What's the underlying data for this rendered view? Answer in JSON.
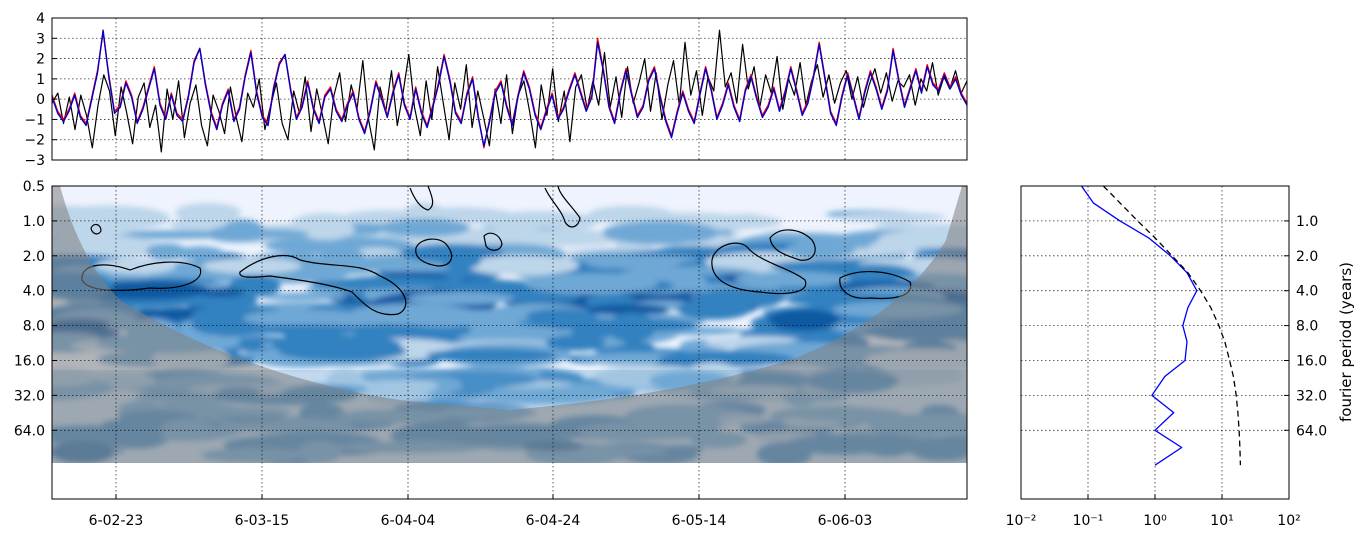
{
  "chart_data": [
    {
      "type": "line",
      "panel": "time-series",
      "ylim": [
        -3,
        4
      ],
      "y_ticks": [
        -3,
        -2,
        -1,
        0,
        1,
        2,
        3,
        4
      ],
      "y_tick_labels": [
        "−3",
        "−2",
        "−1",
        "0",
        "1",
        "2",
        "3",
        "4"
      ],
      "x_tick_labels": [
        "6-02-23",
        "6-03-15",
        "6-04-04",
        "6-04-24",
        "6-05-14",
        "6-06-03"
      ],
      "grid": true,
      "colors": {
        "red": "#ff0000",
        "blue": "#0000cc",
        "black": "#000000"
      },
      "series": [
        {
          "color": "#ff0000",
          "values": [
            0.2,
            -0.6,
            -1.0,
            -0.5,
            0.3,
            -0.8,
            -1.2,
            0.1,
            1.4,
            3.3,
            1.2,
            -0.6,
            -0.3,
            0.9,
            0.2,
            -1.1,
            -0.4,
            0.6,
            1.6,
            -0.2,
            -0.9,
            0.3,
            -0.7,
            -1.0,
            0.2,
            1.9,
            2.5,
            0.8,
            -0.6,
            -1.4,
            -0.2,
            0.5,
            -1.0,
            -0.4,
            1.2,
            2.4,
            0.4,
            -0.8,
            -1.2,
            0.6,
            1.8,
            2.2,
            0.5,
            -0.9,
            -0.3,
            0.9,
            -0.4,
            -1.1,
            0.2,
            0.6,
            -0.5,
            -1.0,
            -0.2,
            0.4,
            -0.9,
            -1.6,
            -0.5,
            0.9,
            0.1,
            -0.8,
            0.4,
            1.3,
            -0.2,
            -0.9,
            0.6,
            -0.6,
            -1.3,
            -0.3,
            0.8,
            2.2,
            1.0,
            -0.6,
            -1.1,
            0.3,
            1.1,
            -0.8,
            -2.4,
            -1.0,
            0.4,
            0.9,
            -0.3,
            -1.2,
            0.2,
            1.4,
            0.6,
            -0.7,
            -1.4,
            -0.5,
            0.3,
            -0.9,
            -0.4,
            0.5,
            1.3,
            0.4,
            -0.5,
            0.2,
            3.0,
            1.5,
            -0.3,
            -1.1,
            0.4,
            1.5,
            0.3,
            -0.8,
            -0.3,
            1.0,
            1.6,
            0.2,
            -1.0,
            -1.8,
            -0.6,
            0.4,
            -0.5,
            -1.1,
            0.3,
            1.6,
            0.5,
            -0.9,
            -0.2,
            0.8,
            -0.3,
            -1.0,
            0.5,
            1.2,
            0.1,
            -0.8,
            -0.3,
            0.6,
            -0.5,
            0.4,
            1.6,
            0.5,
            -0.7,
            -0.1,
            1.2,
            2.8,
            1.1,
            -0.6,
            -1.2,
            0.2,
            1.3,
            0.2,
            -0.9,
            0.4,
            1.4,
            0.6,
            -0.4,
            0.5,
            2.5,
            1.0,
            -0.3,
            0.6,
            1.5,
            0.4,
            1.7,
            0.8,
            0.5,
            1.3,
            0.6,
            1.1,
            0.3,
            -0.2
          ]
        },
        {
          "color": "#0000cc",
          "values": [
            0.1,
            -0.7,
            -1.1,
            -0.6,
            0.2,
            -0.9,
            -1.3,
            0.0,
            1.3,
            3.4,
            1.1,
            -0.7,
            -0.4,
            0.8,
            0.1,
            -1.2,
            -0.5,
            0.5,
            1.5,
            -0.3,
            -1.0,
            0.2,
            -0.8,
            -1.1,
            0.1,
            1.8,
            2.5,
            0.7,
            -0.7,
            -1.5,
            -0.3,
            0.4,
            -1.1,
            -0.5,
            1.1,
            2.3,
            0.3,
            -0.9,
            -1.3,
            0.5,
            1.7,
            2.2,
            0.4,
            -1.0,
            -0.4,
            0.8,
            -0.5,
            -1.2,
            0.1,
            0.5,
            -0.6,
            -1.1,
            -0.3,
            0.3,
            -1.0,
            -1.7,
            -0.6,
            0.8,
            0.0,
            -0.9,
            0.3,
            1.2,
            -0.3,
            -1.0,
            0.5,
            -0.7,
            -1.4,
            -0.4,
            0.7,
            2.1,
            0.9,
            -0.7,
            -1.2,
            0.2,
            1.0,
            -0.9,
            -2.3,
            -1.1,
            0.3,
            0.8,
            -0.4,
            -1.3,
            0.1,
            1.3,
            0.5,
            -0.8,
            -1.5,
            -0.6,
            0.2,
            -1.0,
            -0.5,
            0.4,
            1.2,
            0.3,
            -0.6,
            0.1,
            2.8,
            1.4,
            -0.4,
            -1.2,
            0.3,
            1.4,
            0.2,
            -0.9,
            -0.4,
            0.9,
            1.5,
            0.1,
            -1.1,
            -1.9,
            -0.7,
            0.3,
            -0.6,
            -1.2,
            0.2,
            1.5,
            0.4,
            -1.0,
            -0.3,
            0.7,
            -0.4,
            -1.1,
            0.4,
            1.1,
            0.0,
            -0.9,
            -0.4,
            0.5,
            -0.6,
            0.3,
            1.5,
            0.4,
            -0.8,
            -0.2,
            1.1,
            2.7,
            1.0,
            -0.7,
            -1.3,
            0.1,
            1.2,
            0.1,
            -1.0,
            0.3,
            1.3,
            0.5,
            -0.5,
            0.4,
            2.4,
            0.9,
            -0.4,
            0.5,
            1.4,
            0.3,
            1.6,
            0.7,
            0.4,
            1.2,
            0.5,
            1.0,
            0.2,
            -0.3
          ]
        },
        {
          "color": "#000000",
          "values": [
            -0.2,
            0.3,
            -1.2,
            0.1,
            -1.5,
            0.2,
            -0.8,
            -2.4,
            -0.3,
            1.2,
            0.4,
            -1.8,
            0.6,
            -0.7,
            -2.2,
            0.1,
            0.8,
            -1.4,
            -0.3,
            -2.6,
            0.5,
            -1.0,
            0.9,
            -1.9,
            -0.2,
            0.7,
            -1.3,
            -2.3,
            0.2,
            -0.6,
            -1.7,
            0.6,
            -0.9,
            -2.1,
            0.3,
            -0.4,
            1.0,
            -1.5,
            -0.3,
            0.8,
            -1.2,
            -2.0,
            0.4,
            -0.7,
            1.1,
            -1.6,
            0.5,
            -0.8,
            -2.2,
            0.2,
            1.3,
            -1.1,
            0.7,
            -0.5,
            1.9,
            -1.0,
            -2.5,
            0.6,
            -0.6,
            1.4,
            -1.3,
            0.3,
            2.2,
            -0.4,
            -1.8,
            0.9,
            -1.0,
            1.6,
            -0.2,
            -2.0,
            0.8,
            -0.5,
            1.7,
            -1.4,
            0.4,
            -0.9,
            -2.3,
            0.5,
            -1.2,
            1.2,
            -1.7,
            0.2,
            0.9,
            -0.6,
            -2.4,
            0.7,
            -0.8,
            1.5,
            -1.1,
            0.4,
            -2.1,
            0.6,
            1.2,
            -0.5,
            0.9,
            -0.3,
            2.3,
            -0.4,
            1.1,
            -0.9,
            1.6,
            -0.2,
            0.8,
            2.0,
            -0.6,
            1.3,
            -1.0,
            0.7,
            1.9,
            -0.3,
            2.8,
            0.2,
            1.4,
            -0.8,
            1.1,
            0.4,
            3.4,
            0.6,
            1.3,
            -0.2,
            2.7,
            0.5,
            1.6,
            -0.4,
            1.2,
            0.3,
            2.1,
            -0.5,
            1.0,
            0.2,
            1.8,
            -0.3,
            0.9,
            1.7,
            0.1,
            1.2,
            -0.2,
            0.8,
            1.4,
            0.0,
            1.1,
            -0.4,
            0.7,
            1.5,
            0.3,
            1.3,
            -0.1,
            0.9,
            0.6,
            1.2,
            -0.3,
            1.0,
            0.4,
            1.8,
            0.2,
            1.1,
            0.5,
            1.4,
            0.3,
            0.9
          ]
        }
      ]
    },
    {
      "type": "heatmap",
      "panel": "wavelet-power-spectrum",
      "y_scale": "log2 (inverted)",
      "y_tick_labels": [
        "0.5",
        "1.0",
        "2.0",
        "4.0",
        "8.0",
        "16.0",
        "32.0",
        "64.0"
      ],
      "x_tick_labels": [
        "6-02-23",
        "6-03-15",
        "6-04-04",
        "6-04-24",
        "6-05-14",
        "6-06-03"
      ],
      "grid": true,
      "colormap": [
        "#eef3fd",
        "#bdd6ea",
        "#6fa8d5",
        "#3381c0",
        "#0e5aa3"
      ],
      "cone_of_influence_color": "#7f7f7f"
    },
    {
      "type": "line",
      "panel": "global-wavelet-spectrum",
      "x_scale": "log",
      "x_tick_labels": [
        "10⁻²",
        "10⁻¹",
        "10⁰",
        "10¹",
        "10²"
      ],
      "y_tick_labels": [
        "1.0",
        "2.0",
        "4.0",
        "8.0",
        "16.0",
        "32.0",
        "64.0"
      ],
      "ylabel": "fourier period (years)",
      "grid": true,
      "series": [
        {
          "style": "solid",
          "color": "#0000ff",
          "period": [
            0.5,
            0.7,
            1.0,
            1.4,
            2.0,
            2.8,
            4.0,
            5.6,
            8.0,
            11.0,
            16.0,
            22.0,
            32.0,
            45.0,
            64.0,
            90.0,
            128.0
          ],
          "power": [
            0.08,
            0.12,
            0.3,
            0.8,
            1.7,
            3.0,
            4.2,
            3.1,
            2.6,
            3.0,
            2.8,
            1.4,
            0.9,
            1.9,
            1.0,
            2.5,
            1.0
          ]
        },
        {
          "style": "dashed",
          "color": "#000000",
          "period": [
            0.5,
            0.7,
            1.0,
            1.4,
            2.0,
            2.8,
            4.0,
            5.6,
            8.0,
            11.0,
            16.0,
            22.0,
            32.0,
            45.0,
            64.0,
            90.0,
            128.0
          ],
          "power": [
            0.17,
            0.3,
            0.55,
            1.0,
            1.8,
            3.1,
            4.8,
            6.8,
            9.0,
            11.0,
            13.0,
            14.8,
            16.3,
            17.3,
            18.0,
            18.5,
            18.8
          ]
        }
      ]
    }
  ]
}
